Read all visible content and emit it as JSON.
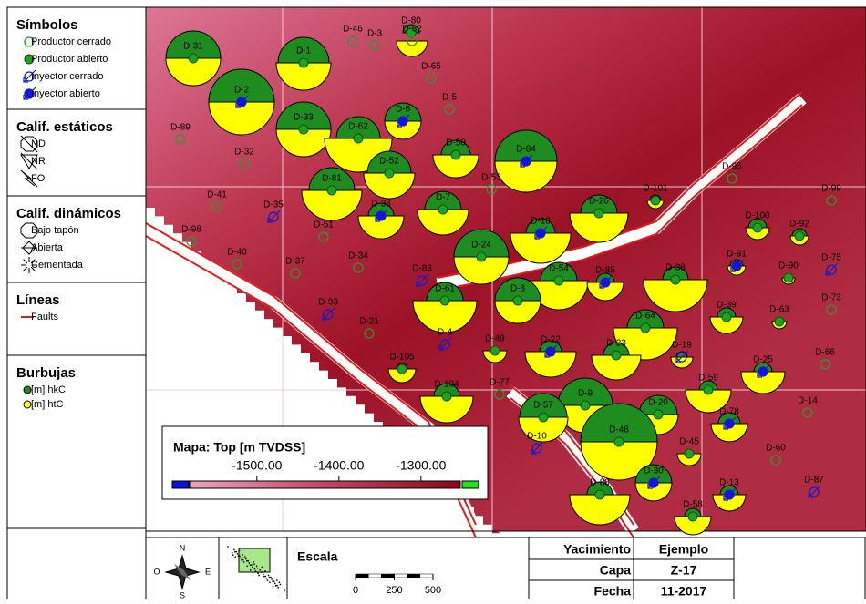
{
  "legend": {
    "sections": [
      {
        "title": "Símbolos",
        "items": [
          "Productor cerrado",
          "Productor abierto",
          "Inyector cerrado",
          "Inyector abierto"
        ]
      },
      {
        "title": "Calif. estáticos",
        "items": [
          "ND",
          "NR",
          "FO"
        ]
      },
      {
        "title": "Calif. dinámicos",
        "items": [
          "Bajo tapón",
          "Abierta",
          "Cementada"
        ]
      },
      {
        "title": "Líneas",
        "items": [
          "Faults"
        ]
      },
      {
        "title": "Burbujas",
        "items": [
          "[m] hkC",
          "[m] htC"
        ]
      }
    ]
  },
  "map": {
    "wells": [
      "D-31",
      "D-1",
      "D-46",
      "D-3",
      "D-80",
      "D-82",
      "D-65",
      "D-2",
      "D-33",
      "D-62",
      "D-6",
      "D-5",
      "D-89",
      "D-50",
      "D-84",
      "D-32",
      "D-81",
      "D-52",
      "D-53",
      "D-7",
      "D-41",
      "D-35",
      "D-38",
      "D-101",
      "D-95",
      "D-99",
      "D-98",
      "D-51",
      "D-26",
      "D-18",
      "D-100",
      "D-92",
      "D-24",
      "D-40",
      "D-37",
      "D-34",
      "D-83",
      "D-75",
      "D-91",
      "D-90",
      "D-54",
      "D-61",
      "D-8",
      "D-85",
      "D-38",
      "D-93",
      "D-73",
      "D-39",
      "D-63",
      "D-64",
      "D-21",
      "D-4",
      "D-49",
      "D-22",
      "D-23",
      "D-19",
      "D-105",
      "D-66",
      "D-25",
      "D-59",
      "D-104",
      "D-77",
      "D-9",
      "D-57",
      "D-20",
      "D-14",
      "D-78",
      "D-48",
      "D-10",
      "D-45",
      "D-60",
      "D-87",
      "D-30",
      "D-88",
      "D-13",
      "D-58"
    ],
    "colorbar": {
      "title": "Mapa: Top [m TVDSS]",
      "lim": [
        -1582,
        -1252
      ],
      "ticks": [
        {
          "value": -1500,
          "label": "-1500.00"
        },
        {
          "value": -1400,
          "label": "-1400.00"
        },
        {
          "value": -1300,
          "label": "-1300.00"
        }
      ]
    }
  },
  "footer": {
    "compass": {
      "north": "N",
      "south": "S",
      "east": "E",
      "west": "O"
    },
    "scale": {
      "title": "Escala",
      "lim": [
        0,
        500
      ],
      "ticks": [
        0,
        250,
        500
      ]
    },
    "table": {
      "rows": [
        [
          "Yacimiento",
          "Ejemplo"
        ],
        [
          "Capa",
          "Z-17"
        ],
        [
          "Fecha",
          "11-2017"
        ]
      ]
    }
  }
}
